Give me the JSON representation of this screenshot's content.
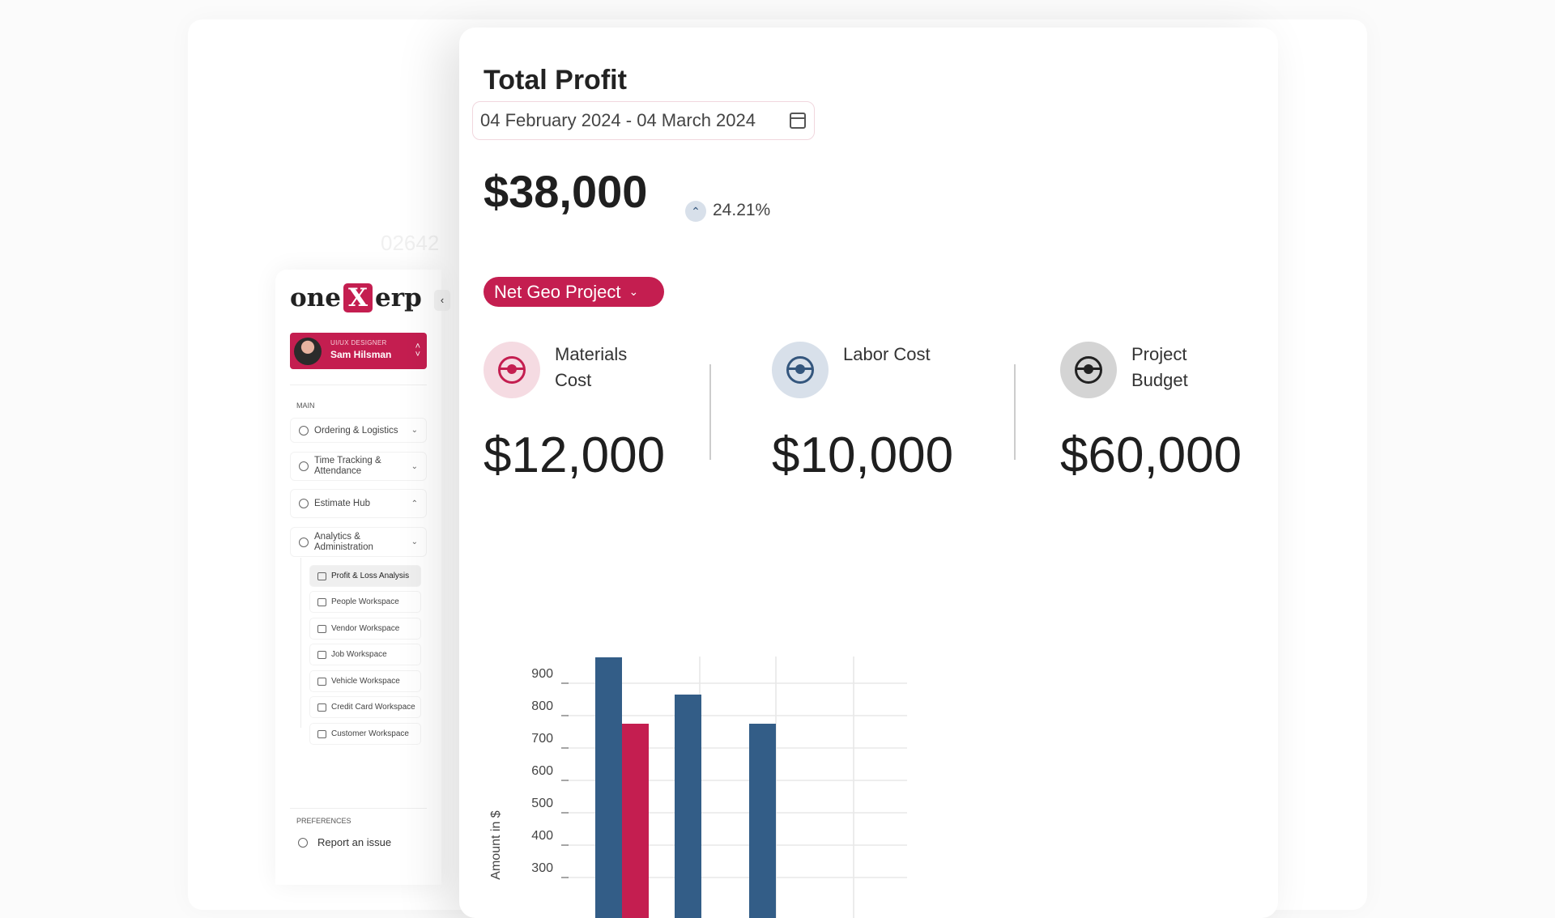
{
  "background": {
    "ghost_text": "02642"
  },
  "main": {
    "title": "Total Profit",
    "date_range": "04 February 2024 - 04 March 2024",
    "total": "$38,000",
    "change": "24.21%",
    "change_direction": "up",
    "project_select": "Net Geo Project",
    "stats": [
      {
        "label": "Materials Cost",
        "value": "$12,000",
        "color": "#c41e50",
        "bg": "#f5dbe2",
        "icon": "steering-wheel-icon"
      },
      {
        "label": "Labor Cost",
        "value": "$10,000",
        "color": "#34567d",
        "bg": "#d8e0ea",
        "icon": "steering-wheel-icon"
      },
      {
        "label": "Project Budget",
        "value": "$60,000",
        "color": "#222222",
        "bg": "#d4d4d4",
        "icon": "steering-wheel-icon"
      }
    ]
  },
  "chart_data": {
    "type": "bar",
    "ylabel": "Amount in $",
    "xlabel": "",
    "yticks": [
      300,
      400,
      500,
      600,
      700,
      800,
      900
    ],
    "grid": true,
    "colors": {
      "blue": "#335d87",
      "red": "#c41e50"
    },
    "bars": [
      {
        "group": 1,
        "color": "blue",
        "value": 980
      },
      {
        "group": 1,
        "color": "red",
        "value": 775
      },
      {
        "group": 2,
        "color": "blue",
        "value": 865
      },
      {
        "group": 3,
        "color": "blue",
        "value": 775
      }
    ]
  },
  "sidebar": {
    "logo": {
      "left": "one",
      "mid": "X",
      "right": "erp"
    },
    "user": {
      "role": "UI/UX DESIGNER",
      "name": "Sam Hilsman"
    },
    "main_label": "MAIN",
    "nav": [
      {
        "label": "Ordering & Logistics",
        "chev": "⌄"
      },
      {
        "label": "Time Tracking & Attendance",
        "chev": "⌄"
      },
      {
        "label": "Estimate Hub",
        "chev": "⌃"
      },
      {
        "label": "Analytics & Administration",
        "chev": "⌄"
      }
    ],
    "sub": [
      "Profit & Loss Analysis",
      "People Workspace",
      "Vendor Workspace",
      "Job Workspace",
      "Vehicle Workspace",
      "Credit Card Workspace",
      "Customer Workspace"
    ],
    "active_sub": "Profit & Loss Analysis",
    "pref_label": "PREFERENCES",
    "report": "Report an issue"
  }
}
